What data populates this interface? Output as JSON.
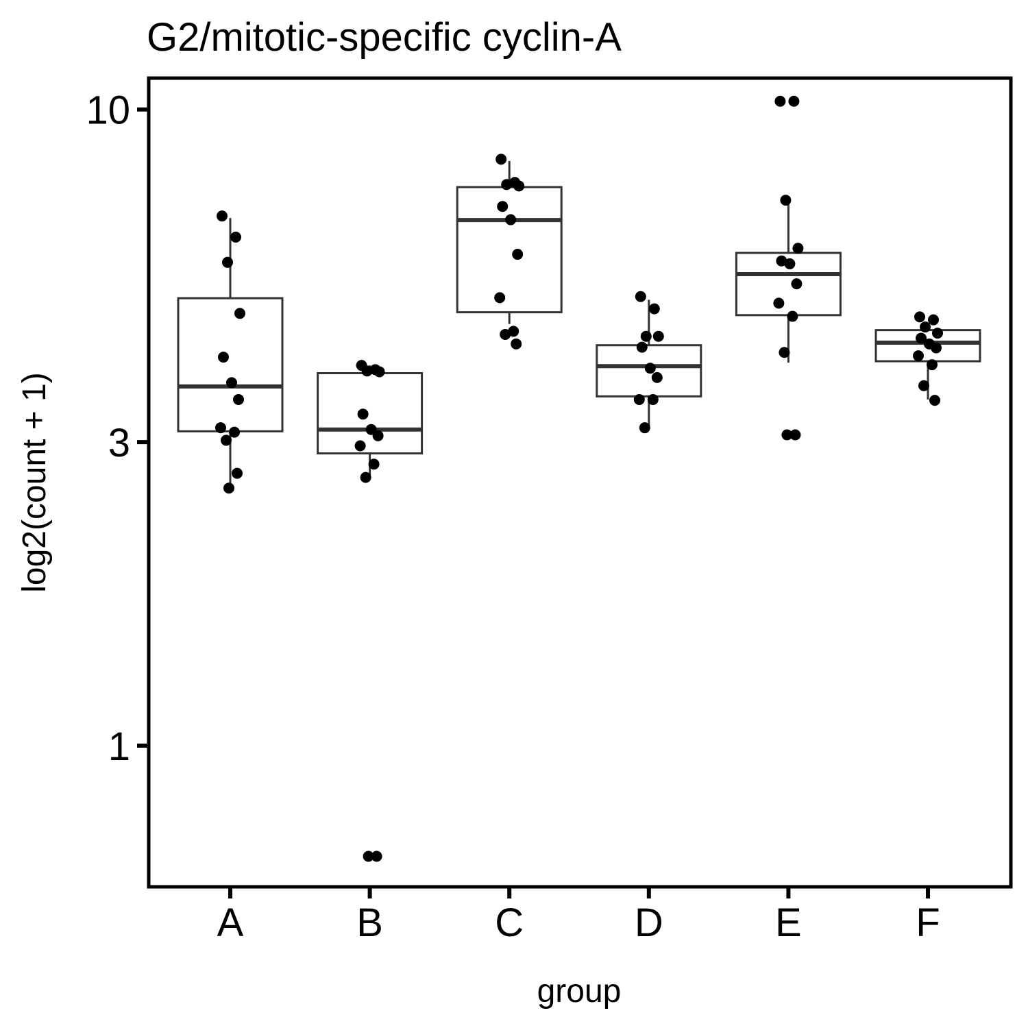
{
  "chart_data": {
    "type": "box",
    "title": "G2/mitotic-specific cyclin-A",
    "xlabel": "group",
    "ylabel": "log2(count + 1)",
    "y_scale": "log",
    "ylim": [
      0.6,
      11.2
    ],
    "y_ticks": [
      1,
      3,
      10
    ],
    "grid": false,
    "legend": "none",
    "colors": {
      "box": "#333333",
      "points": "#000000",
      "frame": "#000000"
    },
    "categories": [
      "A",
      "B",
      "C",
      "D",
      "E",
      "F"
    ],
    "boxes": [
      {
        "group": "A",
        "q1": 3.12,
        "median": 3.67,
        "q3": 5.05,
        "whisker_low": 2.55,
        "whisker_high": 6.75
      },
      {
        "group": "B",
        "q1": 2.88,
        "median": 3.14,
        "q3": 3.85,
        "whisker_low": 2.64,
        "whisker_high": 3.96
      },
      {
        "group": "C",
        "q1": 4.8,
        "median": 6.7,
        "q3": 7.55,
        "whisker_low": 4.6,
        "whisker_high": 8.3
      },
      {
        "group": "D",
        "q1": 3.54,
        "median": 3.95,
        "q3": 4.26,
        "whisker_low": 3.15,
        "whisker_high": 5.02
      },
      {
        "group": "E",
        "q1": 4.75,
        "median": 5.51,
        "q3": 5.95,
        "whisker_low": 4.0,
        "whisker_high": 7.25
      },
      {
        "group": "F",
        "q1": 4.02,
        "median": 4.3,
        "q3": 4.5,
        "whisker_low": 3.5,
        "whisker_high": 4.62
      }
    ],
    "points": [
      {
        "group": "A",
        "values": [
          6.8,
          6.3,
          5.75,
          4.78,
          4.08,
          3.72,
          3.5,
          3.16,
          3.11,
          3.02,
          2.68,
          2.54
        ]
      },
      {
        "group": "B",
        "values": [
          3.96,
          3.9,
          3.88,
          3.87,
          3.32,
          3.14,
          3.07,
          2.96,
          2.77,
          2.64,
          0.67,
          0.67
        ]
      },
      {
        "group": "C",
        "values": [
          8.35,
          7.68,
          7.62,
          7.58,
          7.04,
          6.71,
          5.92,
          5.06,
          4.48,
          4.43,
          4.28
        ]
      },
      {
        "group": "D",
        "values": [
          5.08,
          4.86,
          4.4,
          4.4,
          4.23,
          3.92,
          3.79,
          3.5,
          3.5,
          3.16
        ]
      },
      {
        "group": "E",
        "values": [
          10.3,
          10.3,
          7.2,
          6.05,
          5.78,
          5.72,
          5.32,
          4.96,
          4.73,
          4.15,
          3.08,
          3.08
        ]
      },
      {
        "group": "F",
        "values": [
          4.72,
          4.67,
          4.55,
          4.45,
          4.37,
          4.28,
          4.22,
          4.1,
          3.97,
          3.68,
          3.49
        ]
      }
    ]
  }
}
